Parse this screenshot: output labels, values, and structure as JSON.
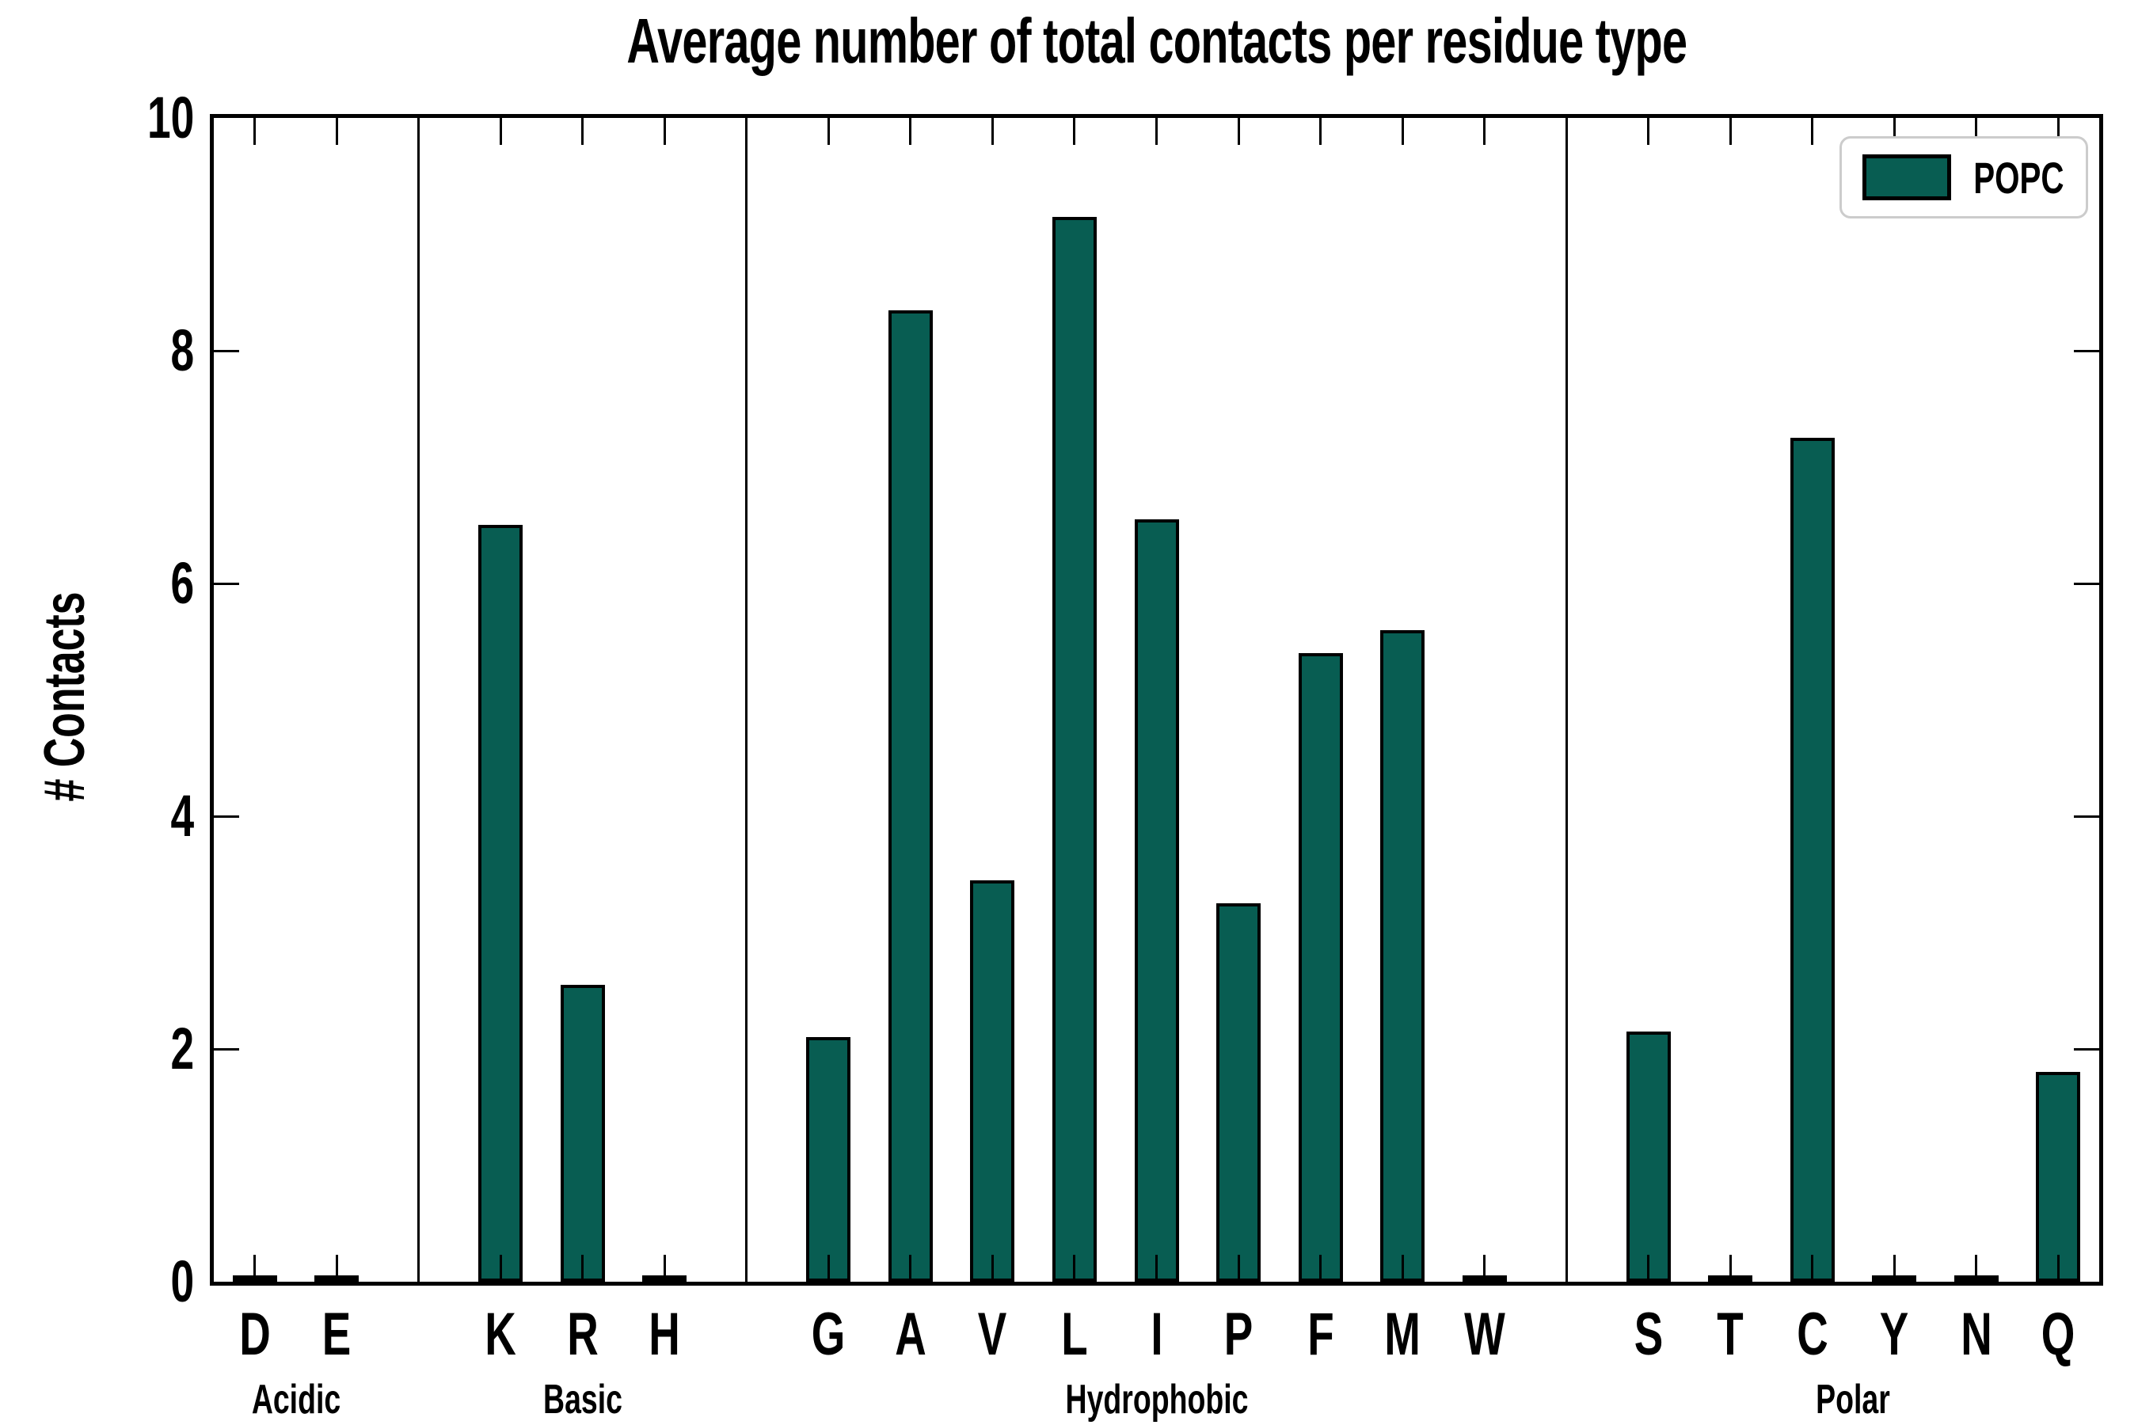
{
  "chart_data": {
    "type": "bar",
    "title": "Average number of total contacts per residue type",
    "ylabel": "# Contacts",
    "ylim": [
      0,
      10
    ],
    "yticks": [
      0,
      2,
      4,
      6,
      8,
      10
    ],
    "grid": false,
    "legend": {
      "label": "POPC",
      "position": "upper right"
    },
    "bar_color": "#085d52",
    "bar_edge_color": "#000000",
    "groups": [
      {
        "label": "Acidic",
        "categories": [
          "D",
          "E"
        ],
        "values": [
          0.03,
          0.03
        ]
      },
      {
        "label": "Basic",
        "categories": [
          "K",
          "R",
          "H"
        ],
        "values": [
          6.5,
          2.55,
          0.03
        ]
      },
      {
        "label": "Hydrophobic",
        "categories": [
          "G",
          "A",
          "V",
          "L",
          "I",
          "P",
          "F",
          "M",
          "W"
        ],
        "values": [
          2.1,
          8.35,
          3.45,
          9.15,
          6.55,
          3.25,
          5.4,
          5.6,
          0.03
        ]
      },
      {
        "label": "Polar",
        "categories": [
          "S",
          "T",
          "C",
          "Y",
          "N",
          "Q"
        ],
        "values": [
          2.15,
          0.03,
          7.25,
          0.03,
          0.03,
          1.8
        ]
      }
    ]
  }
}
